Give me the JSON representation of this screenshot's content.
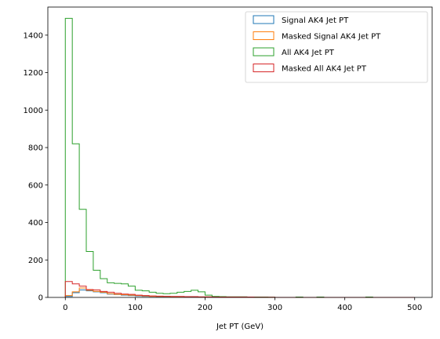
{
  "chart_data": {
    "type": "histogram",
    "title": "",
    "xlabel": "Jet PT (GeV)",
    "ylabel": "",
    "xlim": [
      -25,
      525
    ],
    "ylim": [
      0,
      1550
    ],
    "bin_edges": [
      0,
      10,
      20,
      30,
      40,
      50,
      60,
      70,
      80,
      90,
      100,
      110,
      120,
      130,
      140,
      150,
      160,
      170,
      180,
      190,
      200,
      210,
      220,
      230,
      240,
      250,
      260,
      270,
      280,
      290,
      300,
      310,
      320,
      330,
      340,
      350,
      360,
      370,
      380,
      390,
      400,
      410,
      420,
      430,
      440,
      450,
      460,
      470,
      480,
      490,
      500
    ],
    "x_ticks": [
      0,
      100,
      200,
      300,
      400,
      500
    ],
    "y_ticks": [
      0,
      200,
      400,
      600,
      800,
      1000,
      1200,
      1400
    ],
    "grid": false,
    "legend_position": "top-right",
    "series": [
      {
        "name": "Signal AK4 Jet PT",
        "color": "#1f77b4",
        "values": [
          5,
          25,
          40,
          35,
          30,
          25,
          18,
          15,
          12,
          10,
          8,
          6,
          5,
          4,
          4,
          3,
          3,
          3,
          2,
          2,
          2,
          1,
          1,
          1,
          1,
          1,
          1,
          0,
          0,
          0,
          0,
          0,
          0,
          0,
          0,
          0,
          0,
          0,
          0,
          0,
          0,
          0,
          0,
          0,
          0,
          0,
          0,
          0,
          0,
          0
        ]
      },
      {
        "name": "Masked Signal AK4 Jet PT",
        "color": "#ff7f0e",
        "values": [
          10,
          30,
          50,
          38,
          32,
          28,
          20,
          16,
          14,
          12,
          10,
          8,
          6,
          5,
          5,
          4,
          4,
          3,
          3,
          2,
          2,
          2,
          1,
          1,
          1,
          1,
          1,
          1,
          1,
          0,
          0,
          0,
          0,
          0,
          0,
          0,
          0,
          0,
          0,
          0,
          0,
          0,
          0,
          0,
          0,
          0,
          0,
          0,
          0,
          0
        ]
      },
      {
        "name": "All AK4 Jet PT",
        "color": "#2ca02c",
        "values": [
          1490,
          820,
          470,
          245,
          145,
          100,
          78,
          75,
          72,
          60,
          38,
          35,
          28,
          22,
          20,
          22,
          28,
          32,
          38,
          30,
          12,
          5,
          4,
          3,
          3,
          3,
          2,
          2,
          2,
          1,
          0,
          0,
          0,
          2,
          0,
          0,
          2,
          0,
          0,
          0,
          0,
          0,
          0,
          2,
          0,
          0,
          0,
          0,
          0,
          0
        ]
      },
      {
        "name": "Masked All AK4 Jet PT",
        "color": "#d62728",
        "values": [
          85,
          72,
          60,
          42,
          40,
          32,
          28,
          22,
          18,
          16,
          12,
          10,
          8,
          7,
          6,
          5,
          5,
          4,
          4,
          3,
          3,
          2,
          2,
          2,
          2,
          2,
          2,
          1,
          1,
          1,
          0,
          0,
          0,
          0,
          0,
          0,
          0,
          0,
          0,
          0,
          0,
          0,
          0,
          0,
          0,
          0,
          0,
          0,
          0,
          0
        ]
      }
    ]
  }
}
